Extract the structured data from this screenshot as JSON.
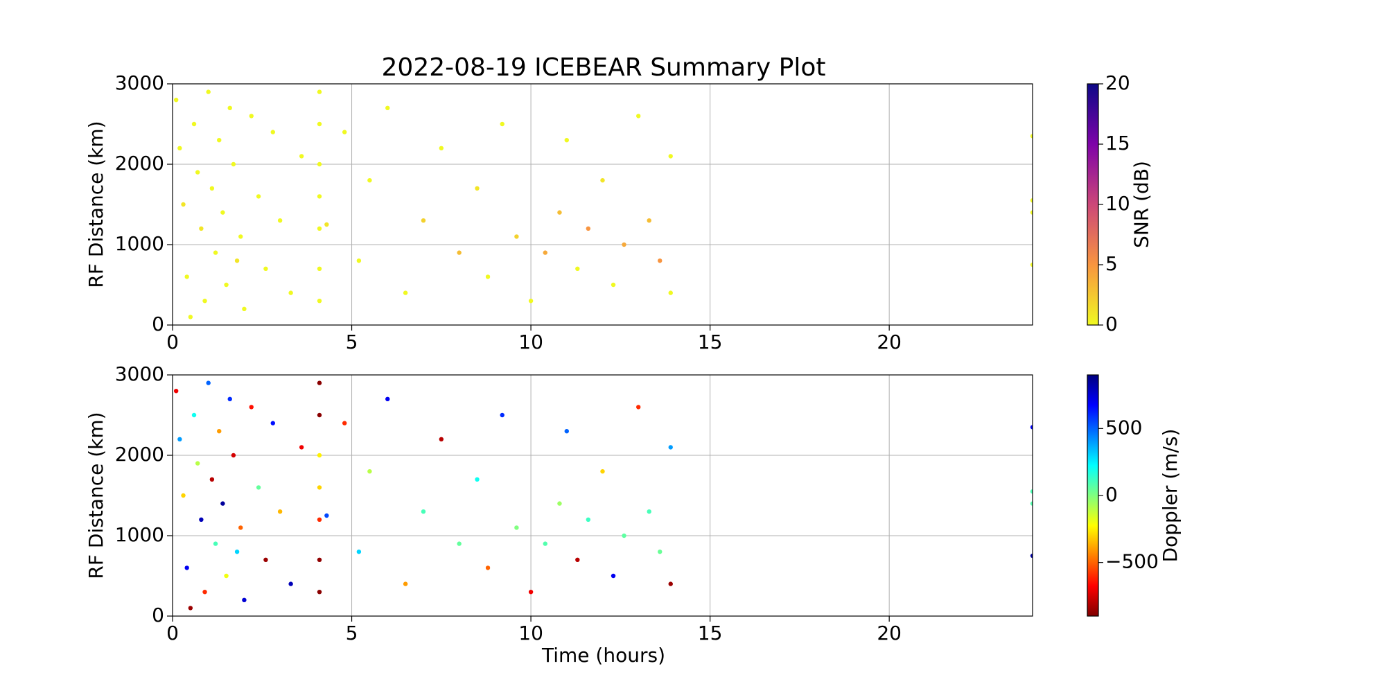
{
  "chart_data": [
    {
      "type": "scatter",
      "title": "2022-08-19 ICEBEAR Summary Plot",
      "ylabel": "RF Distance (km)",
      "colorbar_label": "SNR (dB)",
      "colormap": "plasma_r",
      "xlim": [
        0,
        24
      ],
      "xticks": [
        0,
        5,
        10,
        15,
        20
      ],
      "ylim": [
        0,
        3000
      ],
      "yticks": [
        0,
        1000,
        2000,
        3000
      ],
      "clim": [
        0,
        20
      ],
      "cticks": [
        0,
        5,
        10,
        15,
        20
      ],
      "grid": true,
      "x": [
        0.1,
        0.2,
        0.3,
        0.4,
        0.5,
        0.6,
        0.7,
        0.8,
        0.9,
        1.0,
        1.1,
        1.2,
        1.3,
        1.4,
        1.5,
        1.6,
        1.7,
        1.8,
        1.9,
        2.0,
        2.2,
        2.4,
        2.6,
        2.8,
        3.0,
        3.3,
        3.6,
        4.1,
        4.1,
        4.1,
        4.1,
        4.1,
        4.1,
        4.1,
        4.3,
        4.8,
        5.2,
        5.5,
        6.0,
        6.5,
        7.0,
        7.5,
        8.0,
        8.5,
        8.8,
        9.2,
        9.6,
        10.0,
        10.4,
        10.8,
        11.0,
        11.3,
        11.6,
        12.0,
        12.3,
        12.6,
        13.0,
        13.3,
        13.6,
        13.9,
        13.9,
        24.0,
        24.0,
        24.0,
        24.0
      ],
      "values": [
        2800,
        2200,
        1500,
        600,
        100,
        2500,
        1900,
        1200,
        300,
        2900,
        1700,
        900,
        2300,
        1400,
        500,
        2700,
        2000,
        800,
        1100,
        200,
        2600,
        1600,
        700,
        2400,
        1300,
        400,
        2100,
        300,
        700,
        1200,
        1600,
        2000,
        2500,
        2900,
        1250,
        2400,
        800,
        1800,
        2700,
        400,
        1300,
        2200,
        900,
        1700,
        600,
        2500,
        1100,
        300,
        900,
        1400,
        2300,
        700,
        1200,
        1800,
        500,
        1000,
        2600,
        1300,
        800,
        2100,
        400,
        1400,
        1550,
        2350,
        750
      ],
      "color_values": [
        0,
        0,
        1,
        0,
        0,
        0,
        0,
        1,
        0,
        0,
        0,
        0,
        0,
        0,
        0,
        0,
        0,
        1,
        0,
        0,
        0,
        0,
        0,
        0,
        0,
        0,
        0,
        0,
        0,
        0,
        0,
        0,
        0,
        0,
        1,
        0,
        0,
        0,
        0,
        0,
        2,
        0,
        3,
        1,
        0,
        0,
        2,
        0,
        4,
        3,
        0,
        0,
        5,
        1,
        0,
        4,
        0,
        3,
        5,
        0,
        0,
        0,
        0,
        0,
        0
      ]
    },
    {
      "type": "scatter",
      "ylabel": "RF Distance (km)",
      "xlabel": "Time (hours)",
      "colorbar_label": "Doppler (m/s)",
      "colormap": "jet_r",
      "xlim": [
        0,
        24
      ],
      "xticks": [
        0,
        5,
        10,
        15,
        20
      ],
      "ylim": [
        0,
        3000
      ],
      "yticks": [
        0,
        1000,
        2000,
        3000
      ],
      "clim": [
        -900,
        900
      ],
      "cticks": [
        {
          "value": -500,
          "label": "−500"
        },
        0,
        500
      ],
      "grid": true,
      "x": [
        0.1,
        0.2,
        0.3,
        0.4,
        0.5,
        0.6,
        0.7,
        0.8,
        0.9,
        1.0,
        1.1,
        1.2,
        1.3,
        1.4,
        1.5,
        1.6,
        1.7,
        1.8,
        1.9,
        2.0,
        2.2,
        2.4,
        2.6,
        2.8,
        3.0,
        3.3,
        3.6,
        4.1,
        4.1,
        4.1,
        4.1,
        4.1,
        4.1,
        4.1,
        4.3,
        4.8,
        5.2,
        5.5,
        6.0,
        6.5,
        7.0,
        7.5,
        8.0,
        8.5,
        8.8,
        9.2,
        9.6,
        10.0,
        10.4,
        10.8,
        11.0,
        11.3,
        11.6,
        12.0,
        12.3,
        12.6,
        13.0,
        13.3,
        13.6,
        13.9,
        13.9,
        24.0,
        24.0,
        24.0,
        24.0
      ],
      "values": [
        2800,
        2200,
        1500,
        600,
        100,
        2500,
        1900,
        1200,
        300,
        2900,
        1700,
        900,
        2300,
        1400,
        500,
        2700,
        2000,
        800,
        1100,
        200,
        2600,
        1600,
        700,
        2400,
        1300,
        400,
        2100,
        300,
        700,
        1200,
        1600,
        2000,
        2500,
        2900,
        1250,
        2400,
        800,
        1800,
        2700,
        400,
        1300,
        2200,
        900,
        1700,
        600,
        2500,
        1100,
        300,
        900,
        1400,
        2300,
        700,
        1200,
        1800,
        500,
        1000,
        2600,
        1300,
        800,
        2100,
        400,
        1400,
        1550,
        2350,
        750
      ],
      "color_values": [
        -700,
        400,
        -300,
        700,
        -850,
        200,
        -100,
        800,
        -600,
        500,
        -800,
        100,
        -400,
        850,
        -200,
        600,
        -750,
        300,
        -500,
        750,
        -650,
        50,
        -850,
        650,
        -350,
        800,
        -700,
        -880,
        -870,
        -600,
        -300,
        -250,
        -880,
        -880,
        550,
        -600,
        300,
        -100,
        700,
        -400,
        100,
        -800,
        50,
        200,
        -500,
        600,
        0,
        -700,
        80,
        -50,
        500,
        -800,
        120,
        -300,
        700,
        60,
        -600,
        100,
        40,
        400,
        -850,
        80,
        90,
        700,
        850
      ]
    }
  ]
}
